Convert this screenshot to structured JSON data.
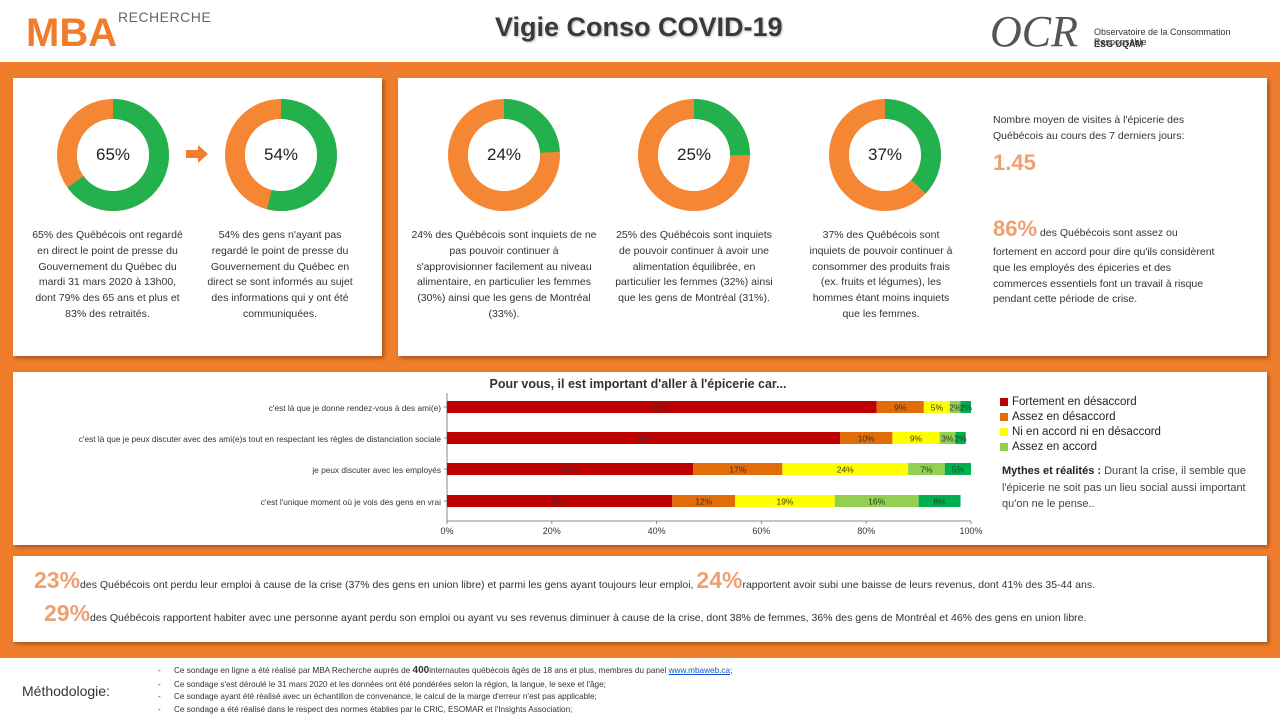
{
  "header": {
    "title": "Vigie Conso COVID-19",
    "mba_logo": "MBA",
    "mba_sub": "RECHERCHE",
    "ocr_logo": "OCR",
    "ocr_line1": "Observatoire de la Consommation Responsable",
    "ocr_line2": "ESG UQÀM"
  },
  "colors": {
    "orange": "#f58634",
    "green": "#22b14c",
    "dark_red": "#c00000",
    "mid_orange": "#e26b0a",
    "yellow": "#ffff00",
    "light_green": "#92d050"
  },
  "donuts": [
    {
      "label": "65%",
      "value": 65,
      "desc": "65% des Québécois ont regardé en direct le point de presse du Gouvernement du Québec du mardi 31 mars 2020 à 13h00, dont 79% des 65 ans et plus et 83% des retraités."
    },
    {
      "label": "54%",
      "value": 54,
      "desc": "54% des gens n'ayant pas regardé le point de presse du Gouvernement du Québec en direct se sont informés au sujet des informations qui y ont été communiquées."
    },
    {
      "label": "24%",
      "value": 24,
      "desc": "24% des Québécois sont inquiets de ne pas pouvoir continuer à s'approvisionner facilement au niveau alimentaire, en particulier les femmes (30%) ainsi que les gens de Montréal (33%)."
    },
    {
      "label": "25%",
      "value": 25,
      "desc": "25% des Québécois sont inquiets de pouvoir continuer à avoir une alimentation équilibrée, en particulier les femmes (32%) ainsi que les gens de Montréal (31%)."
    },
    {
      "label": "37%",
      "value": 37,
      "desc": "37% des Québécois sont inquiets de pouvoir continuer à consommer des produits frais (ex. fruits et légumes), les hommes étant moins inquiets que les femmes."
    }
  ],
  "visits": {
    "text": "Nombre moyen de visites à l'épicerie des Québécois au cours des 7 derniers jours:",
    "value": "1.45"
  },
  "essential": {
    "value": "86%",
    "text": "des Québécois sont assez ou fortement en accord pour dire qu'ils considèrent que les employés des épiceries et des commerces essentiels font un travail à risque pendant cette période de crise."
  },
  "chart_data": {
    "type": "bar",
    "orientation": "horizontal-stacked-100",
    "title": "Pour vous, il est important d'aller à l'épicerie car...",
    "categories": [
      "c'est là que je donne rendez-vous à des ami(e)",
      "c'est là que je peux discuter avec des ami(e)s tout en respectant les règles de distanciation sociale",
      "je peux discuter avec les employés",
      "c'est l'unique moment où je vois des gens en vrai"
    ],
    "series": [
      {
        "name": "Fortement en désaccord",
        "color": "#c00000",
        "values": [
          82,
          75,
          47,
          43
        ]
      },
      {
        "name": "Assez en désaccord",
        "color": "#e26b0a",
        "values": [
          9,
          10,
          17,
          12
        ]
      },
      {
        "name": "Ni en accord ni en désaccord",
        "color": "#ffff00",
        "values": [
          5,
          9,
          24,
          19
        ]
      },
      {
        "name": "Assez en accord",
        "color": "#92d050",
        "values": [
          2,
          3,
          7,
          16
        ]
      },
      {
        "name": "",
        "color": "#00b050",
        "values": [
          2,
          2,
          5,
          8
        ]
      }
    ],
    "xticks": [
      "0%",
      "20%",
      "40%",
      "60%",
      "80%",
      "100%"
    ],
    "xlim": [
      0,
      100
    ],
    "legend_position": "right",
    "grid": false
  },
  "mythes": {
    "title": "Mythes et réalités :",
    "text": "Durant la crise, il semble que l'épicerie ne soit pas un lieu social aussi important qu'on ne le pense.."
  },
  "bottom": {
    "line1_big1": "23%",
    "line1_text1": "des Québécois ont perdu leur emploi à cause de la crise (37% des gens en union libre) et parmi les gens ayant toujours leur emploi,",
    "line1_big2": "24%",
    "line1_text2": "rapportent avoir subi une baisse de leurs revenus, dont 41% des 35-44 ans.",
    "line2_big": "29%",
    "line2_text": "des Québécois rapportent habiter avec une personne ayant perdu son emploi ou ayant vu ses revenus diminuer à cause de la crise, dont 38% de femmes, 36% des gens de Montréal et 46% des gens en union libre."
  },
  "methodology": {
    "label": "Méthodologie:",
    "item1_pre": "Ce sondage en ligne a été réalisé par MBA Recherche auprès de",
    "item1_bold": "400",
    "item1_post": "internautes québécois âgés de 18 ans et plus, membres du panel",
    "item1_link": "www.mbaweb.ca",
    "item1_end": ";",
    "item2": "Ce sondage s'est déroulé le 31 mars 2020 et les données ont été pondérées selon la région, la langue, le sexe et l'âge;",
    "item3": "Ce sondage ayant été réalisé avec un échantillon de convenance, le calcul de la marge d'erreur n'est pas applicable;",
    "item4": "Ce sondage a été réalisé dans le respect des normes établies par le CRIC, ESOMAR et l'Insights Association;",
    "dash": "-"
  }
}
